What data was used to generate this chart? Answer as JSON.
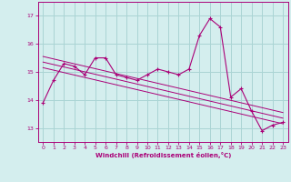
{
  "xlabel": "Windchill (Refroidissement éolien,°C)",
  "background_color": "#d4eeee",
  "grid_color": "#aad4d4",
  "line_color": "#aa0077",
  "xlim": [
    -0.5,
    23.5
  ],
  "ylim": [
    12.5,
    17.5
  ],
  "yticks": [
    13,
    14,
    15,
    16,
    17
  ],
  "xticks": [
    0,
    1,
    2,
    3,
    4,
    5,
    6,
    7,
    8,
    9,
    10,
    11,
    12,
    13,
    14,
    15,
    16,
    17,
    18,
    19,
    20,
    21,
    22,
    23
  ],
  "main_series": [
    [
      0,
      13.9
    ],
    [
      1,
      14.7
    ],
    [
      2,
      15.3
    ],
    [
      3,
      15.2
    ],
    [
      4,
      14.9
    ],
    [
      5,
      15.5
    ],
    [
      6,
      15.5
    ],
    [
      7,
      14.9
    ],
    [
      8,
      14.8
    ],
    [
      9,
      14.7
    ],
    [
      10,
      14.9
    ],
    [
      11,
      15.1
    ],
    [
      12,
      15.0
    ],
    [
      13,
      14.9
    ],
    [
      14,
      15.1
    ],
    [
      15,
      16.3
    ],
    [
      16,
      16.9
    ],
    [
      17,
      16.6
    ],
    [
      18,
      14.1
    ],
    [
      19,
      14.4
    ],
    [
      20,
      13.6
    ],
    [
      21,
      12.9
    ],
    [
      22,
      13.1
    ],
    [
      23,
      13.2
    ]
  ],
  "trend_lines": [
    [
      [
        0,
        15.55
      ],
      [
        23,
        13.55
      ]
    ],
    [
      [
        0,
        15.35
      ],
      [
        23,
        13.35
      ]
    ],
    [
      [
        0,
        15.15
      ],
      [
        23,
        13.15
      ]
    ]
  ]
}
